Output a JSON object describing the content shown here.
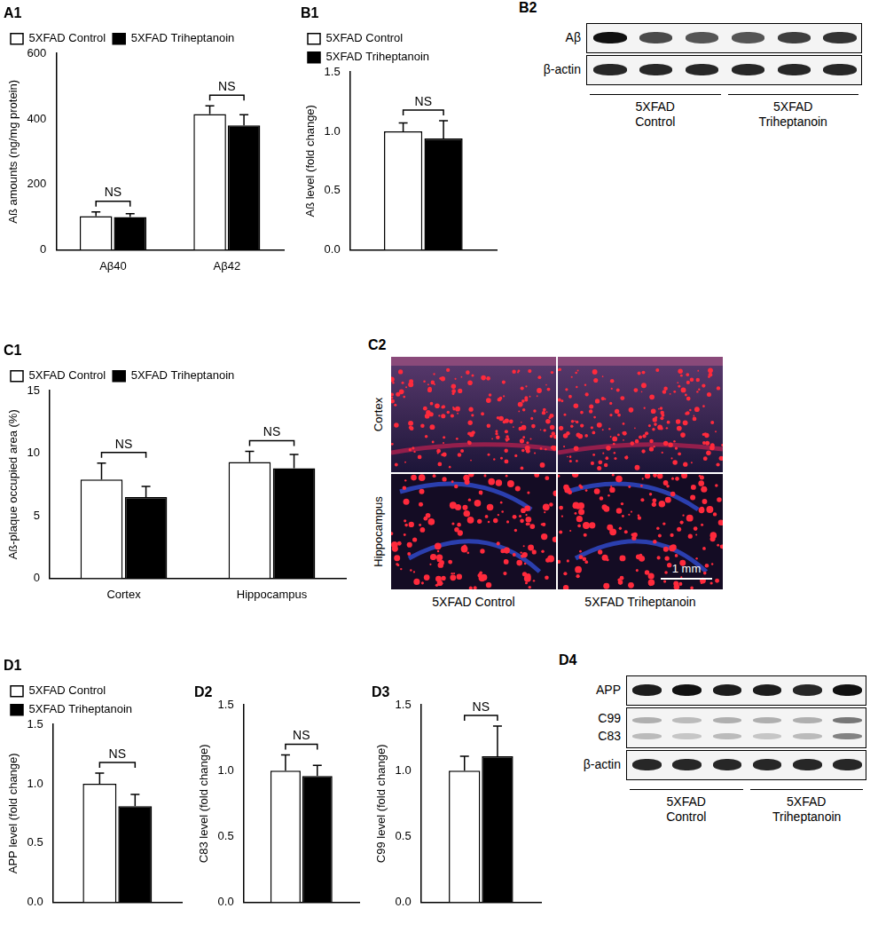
{
  "chart_data": [
    {
      "type": "bar",
      "title": "A1",
      "ylabel": "Aß amounts (ng/mg protein)",
      "categories": [
        "Aβ40",
        "Aβ42"
      ],
      "series": [
        {
          "name": "5XFAD Control",
          "color": "#ffffff",
          "values": [
            103,
            415
          ],
          "errors": [
            13,
            25
          ]
        },
        {
          "name": "5XFAD Triheptanoin",
          "color": "#000000",
          "values": [
            100,
            380
          ],
          "errors": [
            10,
            33
          ]
        }
      ],
      "ylim": [
        0,
        600
      ],
      "yticks": [
        0,
        200,
        400,
        600
      ],
      "legend": "top-left",
      "annotations": [
        "NS",
        "NS"
      ]
    },
    {
      "type": "bar",
      "title": "B1",
      "ylabel": "Aß level (fold change)",
      "categories": [
        null
      ],
      "series": [
        {
          "name": "5XFAD Control",
          "color": "#ffffff",
          "values": [
            1.0
          ],
          "errors": [
            0.07
          ]
        },
        {
          "name": "5XFAD Triheptanoin",
          "color": "#000000",
          "values": [
            0.94
          ],
          "errors": [
            0.15
          ]
        }
      ],
      "ylim": [
        0,
        1.5
      ],
      "yticks": [
        {
          "value": 0,
          "label": "0.0"
        },
        0.5,
        {
          "value": 1,
          "label": "1.0"
        },
        1.5
      ],
      "legend": "top-left",
      "annotations": [
        "NS"
      ]
    },
    {
      "type": "bar",
      "title": "C1",
      "ylabel": "Aß-plaque occupied area (%)",
      "categories": [
        "Cortex",
        "Hippocampus"
      ],
      "series": [
        {
          "name": "5XFAD Control",
          "color": "#ffffff",
          "values": [
            7.9,
            9.3
          ],
          "errors": [
            1.3,
            0.85
          ]
        },
        {
          "name": "5XFAD Triheptanoin",
          "color": "#000000",
          "values": [
            6.5,
            8.8
          ],
          "errors": [
            0.85,
            1.1
          ]
        }
      ],
      "ylim": [
        0,
        15
      ],
      "yticks": [
        0,
        5,
        10,
        15
      ],
      "legend": "top-left",
      "annotations": [
        "NS",
        "NS"
      ]
    },
    {
      "type": "bar",
      "title": "D1",
      "ylabel": "APP level (fold change)",
      "categories": [
        null
      ],
      "series": [
        {
          "name": "5XFAD Control",
          "color": "#ffffff",
          "values": [
            1.0
          ],
          "errors": [
            0.09
          ]
        },
        {
          "name": "5XFAD Triheptanoin",
          "color": "#000000",
          "values": [
            0.81
          ],
          "errors": [
            0.1
          ]
        }
      ],
      "ylim": [
        0,
        1.5
      ],
      "yticks": [
        {
          "value": 0,
          "label": "0.0"
        },
        0.5,
        {
          "value": 1,
          "label": "1.0"
        },
        1.5
      ],
      "legend": "top-left",
      "annotations": [
        "NS"
      ]
    },
    {
      "type": "bar",
      "title": "D2",
      "ylabel": "C83 level (fold change)",
      "categories": [
        null
      ],
      "series": [
        {
          "name": "5XFAD Control",
          "color": "#ffffff",
          "values": [
            1.0
          ],
          "errors": [
            0.12
          ]
        },
        {
          "name": "5XFAD Triheptanoin",
          "color": "#000000",
          "values": [
            0.96
          ],
          "errors": [
            0.08
          ]
        }
      ],
      "ylim": [
        0,
        1.5
      ],
      "yticks": [
        {
          "value": 0,
          "label": "0.0"
        },
        0.5,
        {
          "value": 1,
          "label": "1.0"
        },
        1.5
      ],
      "annotations": [
        "NS"
      ]
    },
    {
      "type": "bar",
      "title": "D3",
      "ylabel": "C99 level (fold change)",
      "categories": [
        null
      ],
      "series": [
        {
          "name": "5XFAD Control",
          "color": "#ffffff",
          "values": [
            1.0
          ],
          "errors": [
            0.11
          ]
        },
        {
          "name": "5XFAD Triheptanoin",
          "color": "#000000",
          "values": [
            1.11
          ],
          "errors": [
            0.23
          ]
        }
      ],
      "ylim": [
        0,
        1.5
      ],
      "yticks": [
        {
          "value": 0,
          "label": "0.0"
        },
        0.5,
        {
          "value": 1,
          "label": "1.0"
        },
        1.5
      ],
      "annotations": [
        "NS"
      ]
    }
  ],
  "blots": [
    {
      "title": "B2",
      "rows": [
        [
          "Aβ"
        ],
        [
          "β-actin"
        ]
      ],
      "groups": [
        "5XFAD Control",
        "5XFAD Triheptanoin"
      ]
    },
    {
      "title": "D4",
      "rows": [
        [
          "APP"
        ],
        [
          "C99",
          "C83"
        ],
        [
          "β-actin"
        ]
      ],
      "groups": [
        "5XFAD Control",
        "5XFAD Triheptanoin"
      ]
    }
  ],
  "micrographs": {
    "title": "C2",
    "rows": [
      "Cortex",
      "Hippocampus"
    ],
    "columns": [
      "5XFAD Control",
      "5XFAD Triheptanoin"
    ],
    "scale_bar": "1 mm"
  }
}
